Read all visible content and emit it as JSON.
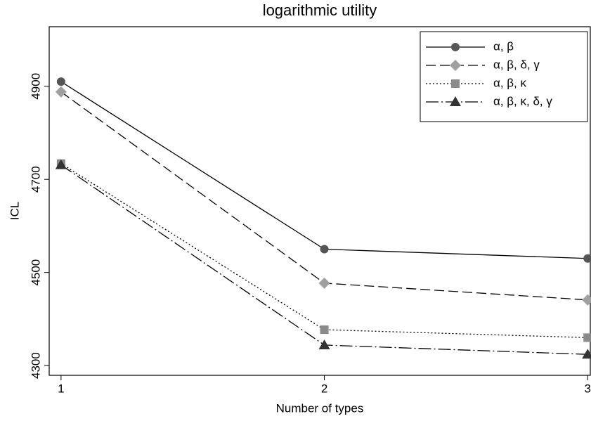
{
  "chart_data": {
    "type": "line",
    "title": "logarithmic utility",
    "x_label": "Number of types",
    "y_label": "ICL",
    "x": [
      1,
      2,
      3
    ],
    "xlim": [
      0.955,
      3.01
    ],
    "xticks": [
      1,
      2,
      3
    ],
    "ylim": [
      4279,
      5028
    ],
    "yticks": [
      4300,
      4500,
      4700,
      4900
    ],
    "legend": "top-right",
    "series": [
      {
        "name": "α, β",
        "color": "#555555",
        "marker": "circle",
        "linestyle": "solid",
        "values": [
          4910,
          4550,
          4530
        ]
      },
      {
        "name": "α, β, δ, γ",
        "color": "#a0a0a0",
        "marker": "diamond",
        "linestyle": "dashed",
        "values": [
          4888,
          4477,
          4441
        ]
      },
      {
        "name": "α, β, κ",
        "color": "#8a8a8a",
        "marker": "square",
        "linestyle": "dotted",
        "values": [
          4734,
          4377,
          4360
        ]
      },
      {
        "name": "α, β, κ, δ, γ",
        "color": "#333333",
        "marker": "triangle",
        "linestyle": "dashdot",
        "values": [
          4731,
          4344,
          4324
        ]
      }
    ]
  }
}
